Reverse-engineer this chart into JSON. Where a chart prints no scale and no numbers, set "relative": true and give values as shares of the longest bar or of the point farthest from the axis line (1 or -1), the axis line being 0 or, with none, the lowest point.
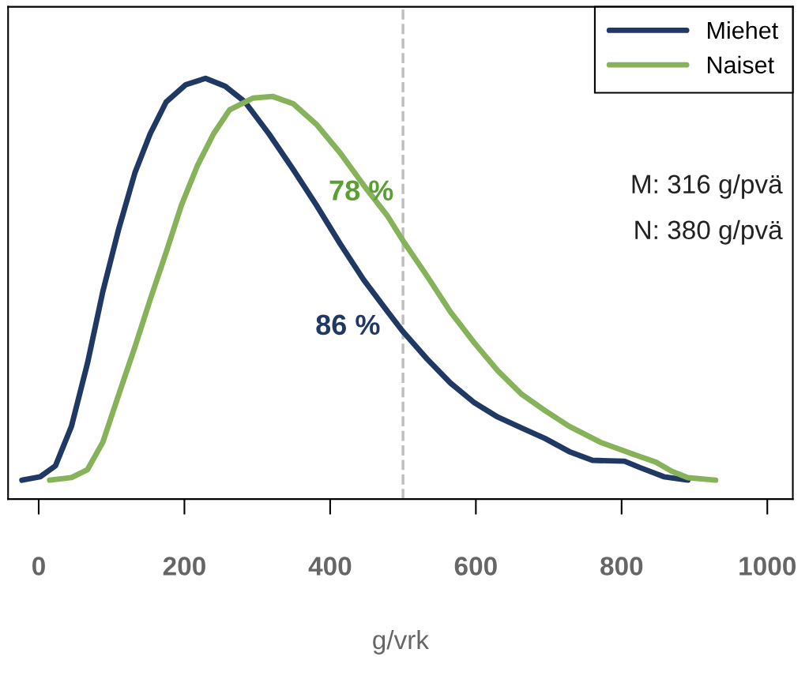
{
  "chart_data": {
    "type": "line",
    "relative": true,
    "xlabel": "g/vrk",
    "xlim": [
      -42,
      1035
    ],
    "xticks": [
      0,
      200,
      400,
      600,
      800,
      1000
    ],
    "series": [
      {
        "name": "Miehet",
        "color": "#1f3864",
        "x": [
          -23,
          2,
          23,
          45,
          67,
          88,
          110,
          132,
          153,
          175,
          202,
          229,
          256,
          283,
          316,
          349,
          381,
          414,
          446,
          479,
          500,
          533,
          565,
          598,
          630,
          663,
          695,
          728,
          760,
          804,
          825,
          858,
          891
        ],
        "values": [
          0.045,
          0.053,
          0.079,
          0.173,
          0.323,
          0.493,
          0.643,
          0.775,
          0.868,
          0.944,
          0.985,
          1,
          0.981,
          0.944,
          0.868,
          0.784,
          0.699,
          0.606,
          0.521,
          0.445,
          0.398,
          0.333,
          0.276,
          0.229,
          0.195,
          0.169,
          0.144,
          0.113,
          0.092,
          0.09,
          0.075,
          0.053,
          0.045
        ]
      },
      {
        "name": "Naiset",
        "color": "#86b25a",
        "x": [
          15,
          45,
          67,
          88,
          110,
          132,
          153,
          175,
          196,
          218,
          240,
          262,
          294,
          321,
          349,
          381,
          414,
          446,
          479,
          500,
          533,
          565,
          598,
          630,
          663,
          695,
          728,
          771,
          815,
          847,
          869,
          891,
          929
        ],
        "values": [
          0.045,
          0.051,
          0.07,
          0.135,
          0.249,
          0.361,
          0.474,
          0.587,
          0.699,
          0.793,
          0.868,
          0.925,
          0.953,
          0.957,
          0.94,
          0.891,
          0.822,
          0.746,
          0.672,
          0.614,
          0.53,
          0.445,
          0.371,
          0.305,
          0.249,
          0.21,
          0.173,
          0.135,
          0.107,
          0.088,
          0.066,
          0.051,
          0.045
        ]
      }
    ],
    "ref_lines": [
      {
        "axis": "x",
        "value": 500,
        "color": "#bfbfbf",
        "line_style": "dashed"
      }
    ],
    "annotations": [
      "86 %",
      "78 %",
      "M: 316 g/pvä",
      "N: 380 g/pvä"
    ],
    "legend": "top right",
    "grid": false,
    "line_style": "solid",
    "marker": "none"
  }
}
